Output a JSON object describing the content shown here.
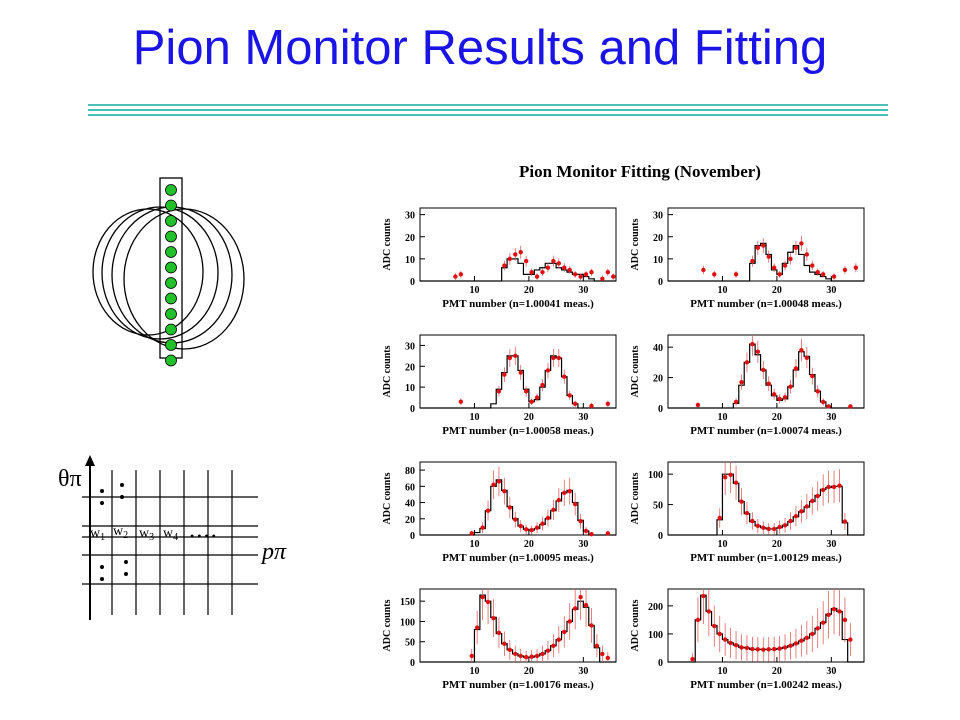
{
  "slide": {
    "title": "Pion Monitor Results and Fitting",
    "title_color": "#1a14e6",
    "rule_color": "#4dc0b6"
  },
  "ring_diagram": {
    "pmt_count": 12,
    "pmt_color": "#22c02a",
    "ring_count": 4
  },
  "grid_diagram": {
    "y_axis_label": "θπ",
    "x_axis_label": "pπ",
    "bins": [
      {
        "base": "w",
        "sub": "1"
      },
      {
        "base": "w",
        "sub": "2"
      },
      {
        "base": "w",
        "sub": "3"
      },
      {
        "base": "w",
        "sub": "4"
      }
    ],
    "ellipsis": "• • • •"
  },
  "chart_data": {
    "type": "histogram-grid",
    "title": "Pion Monitor Fitting (November)",
    "panels": [
      {
        "xlabel": "PMT number (n=1.00041 meas.)",
        "ylabel": "ADC counts",
        "yticks": [
          0,
          10,
          20,
          30
        ],
        "ylim": [
          0,
          33
        ],
        "xticks": [
          10,
          20,
          30
        ],
        "xlim": [
          0,
          36
        ],
        "hist": [
          0,
          0,
          0,
          0,
          0,
          0,
          0,
          0,
          0,
          0,
          0,
          0,
          0,
          0,
          0,
          6,
          10,
          10,
          8,
          3,
          3,
          5,
          6,
          8,
          8,
          6,
          5,
          4,
          3,
          3,
          2,
          1,
          0,
          0,
          0,
          0
        ],
        "points": [
          [
            6,
            2
          ],
          [
            7,
            3
          ],
          [
            15,
            7
          ],
          [
            16,
            10
          ],
          [
            17,
            12
          ],
          [
            18,
            13
          ],
          [
            19,
            9
          ],
          [
            20,
            4
          ],
          [
            21,
            2
          ],
          [
            22,
            4
          ],
          [
            23,
            6
          ],
          [
            24,
            9
          ],
          [
            25,
            8
          ],
          [
            26,
            6
          ],
          [
            27,
            5
          ],
          [
            28,
            3
          ],
          [
            29,
            2
          ],
          [
            30,
            3
          ],
          [
            31,
            4
          ],
          [
            33,
            1
          ],
          [
            34,
            4
          ],
          [
            35,
            2
          ]
        ]
      },
      {
        "xlabel": "PMT number (n=1.00048 meas.)",
        "ylabel": "ADC counts",
        "yticks": [
          0,
          10,
          20,
          30
        ],
        "ylim": [
          0,
          33
        ],
        "xticks": [
          10,
          20,
          30
        ],
        "xlim": [
          0,
          36
        ],
        "hist": [
          0,
          0,
          0,
          0,
          0,
          0,
          0,
          0,
          0,
          0,
          0,
          0,
          0,
          0,
          0,
          8,
          16,
          17,
          12,
          5,
          3,
          8,
          13,
          16,
          12,
          7,
          4,
          3,
          2,
          1,
          0,
          0,
          0,
          0,
          0,
          0
        ],
        "points": [
          [
            6,
            5
          ],
          [
            8,
            3
          ],
          [
            12,
            3
          ],
          [
            15,
            9
          ],
          [
            16,
            15
          ],
          [
            17,
            16
          ],
          [
            18,
            11
          ],
          [
            19,
            6
          ],
          [
            20,
            3
          ],
          [
            21,
            7
          ],
          [
            22,
            10
          ],
          [
            23,
            15
          ],
          [
            24,
            17
          ],
          [
            25,
            12
          ],
          [
            26,
            7
          ],
          [
            27,
            4
          ],
          [
            28,
            3
          ],
          [
            30,
            2
          ],
          [
            32,
            5
          ],
          [
            34,
            6
          ]
        ]
      },
      {
        "xlabel": "PMT number (n=1.00058 meas.)",
        "ylabel": "ADC counts",
        "yticks": [
          0,
          10,
          20,
          30
        ],
        "ylim": [
          0,
          35
        ],
        "xticks": [
          10,
          20,
          30
        ],
        "xlim": [
          0,
          36
        ],
        "hist": [
          0,
          0,
          0,
          0,
          0,
          0,
          0,
          0,
          0,
          0,
          0,
          0,
          0,
          2,
          9,
          17,
          25,
          25,
          18,
          9,
          3,
          4,
          10,
          18,
          25,
          24,
          15,
          6,
          2,
          0,
          0,
          0,
          0,
          0,
          0,
          0
        ],
        "points": [
          [
            7,
            3
          ],
          [
            14,
            8
          ],
          [
            15,
            16
          ],
          [
            16,
            24
          ],
          [
            17,
            25
          ],
          [
            18,
            17
          ],
          [
            19,
            8
          ],
          [
            20,
            3
          ],
          [
            21,
            5
          ],
          [
            22,
            11
          ],
          [
            23,
            18
          ],
          [
            24,
            24
          ],
          [
            25,
            24
          ],
          [
            26,
            15
          ],
          [
            27,
            6
          ],
          [
            28,
            2
          ],
          [
            31,
            1
          ],
          [
            34,
            2
          ]
        ]
      },
      {
        "xlabel": "PMT number (n=1.00074 meas.)",
        "ylabel": "ADC counts",
        "yticks": [
          0,
          20,
          40
        ],
        "ylim": [
          0,
          48
        ],
        "xticks": [
          10,
          20,
          30
        ],
        "xlim": [
          0,
          36
        ],
        "hist": [
          0,
          0,
          0,
          0,
          0,
          0,
          0,
          0,
          0,
          0,
          0,
          0,
          3,
          15,
          30,
          42,
          35,
          25,
          15,
          8,
          5,
          6,
          14,
          25,
          37,
          34,
          22,
          11,
          4,
          1,
          0,
          0,
          0,
          0,
          0,
          0
        ],
        "points": [
          [
            5,
            2
          ],
          [
            12,
            4
          ],
          [
            13,
            17
          ],
          [
            14,
            30
          ],
          [
            15,
            42
          ],
          [
            16,
            37
          ],
          [
            17,
            25
          ],
          [
            18,
            16
          ],
          [
            19,
            9
          ],
          [
            20,
            6
          ],
          [
            21,
            7
          ],
          [
            22,
            14
          ],
          [
            23,
            26
          ],
          [
            24,
            38
          ],
          [
            25,
            33
          ],
          [
            26,
            21
          ],
          [
            27,
            11
          ],
          [
            28,
            4
          ],
          [
            29,
            1
          ],
          [
            33,
            1
          ]
        ]
      },
      {
        "xlabel": "PMT number (n=1.00095 meas.)",
        "ylabel": "ADC counts",
        "yticks": [
          0,
          20,
          40,
          60,
          80
        ],
        "ylim": [
          0,
          90
        ],
        "xticks": [
          10,
          20,
          30
        ],
        "xlim": [
          0,
          36
        ],
        "hist": [
          0,
          0,
          0,
          0,
          0,
          0,
          0,
          0,
          0,
          0,
          3,
          8,
          30,
          60,
          68,
          55,
          35,
          20,
          11,
          7,
          6,
          8,
          13,
          20,
          30,
          42,
          52,
          55,
          40,
          18,
          5,
          0,
          0,
          0,
          0,
          0
        ],
        "points": [
          [
            9,
            2
          ],
          [
            11,
            9
          ],
          [
            12,
            30
          ],
          [
            13,
            62
          ],
          [
            14,
            66
          ],
          [
            15,
            54
          ],
          [
            16,
            34
          ],
          [
            17,
            19
          ],
          [
            18,
            11
          ],
          [
            19,
            7
          ],
          [
            20,
            6
          ],
          [
            21,
            9
          ],
          [
            22,
            14
          ],
          [
            23,
            21
          ],
          [
            24,
            31
          ],
          [
            25,
            43
          ],
          [
            26,
            52
          ],
          [
            27,
            54
          ],
          [
            28,
            38
          ],
          [
            29,
            17
          ],
          [
            30,
            5
          ],
          [
            31,
            1
          ],
          [
            34,
            2
          ]
        ]
      },
      {
        "xlabel": "PMT number (n=1.00129 meas.)",
        "ylabel": "ADC counts",
        "yticks": [
          0,
          50,
          100
        ],
        "ylim": [
          0,
          120
        ],
        "xticks": [
          10,
          20,
          30
        ],
        "xlim": [
          0,
          36
        ],
        "hist": [
          0,
          0,
          0,
          0,
          0,
          0,
          0,
          0,
          0,
          25,
          100,
          100,
          85,
          55,
          35,
          22,
          15,
          12,
          10,
          10,
          12,
          16,
          22,
          30,
          38,
          46,
          55,
          65,
          75,
          78,
          80,
          80,
          20,
          0,
          0,
          0
        ],
        "points": [
          [
            9,
            28
          ],
          [
            10,
            95
          ],
          [
            11,
            99
          ],
          [
            12,
            86
          ],
          [
            13,
            55
          ],
          [
            14,
            36
          ],
          [
            15,
            23
          ],
          [
            16,
            15
          ],
          [
            17,
            12
          ],
          [
            18,
            10
          ],
          [
            19,
            10
          ],
          [
            20,
            13
          ],
          [
            21,
            16
          ],
          [
            22,
            23
          ],
          [
            23,
            31
          ],
          [
            24,
            39
          ],
          [
            25,
            47
          ],
          [
            26,
            56
          ],
          [
            27,
            64
          ],
          [
            28,
            74
          ],
          [
            29,
            79
          ],
          [
            30,
            79
          ],
          [
            31,
            81
          ],
          [
            32,
            22
          ]
        ]
      },
      {
        "xlabel": "PMT number (n=1.00176 meas.)",
        "ylabel": "ADC counts",
        "yticks": [
          0,
          50,
          100,
          150
        ],
        "ylim": [
          0,
          180
        ],
        "xticks": [
          10,
          20,
          30
        ],
        "xlim": [
          0,
          36
        ],
        "hist": [
          0,
          0,
          0,
          0,
          0,
          0,
          0,
          0,
          0,
          0,
          80,
          165,
          150,
          110,
          70,
          45,
          30,
          20,
          15,
          12,
          12,
          15,
          20,
          28,
          40,
          55,
          75,
          100,
          130,
          150,
          135,
          90,
          35,
          0,
          0,
          0
        ],
        "points": [
          [
            9,
            15
          ],
          [
            10,
            85
          ],
          [
            11,
            160
          ],
          [
            12,
            148
          ],
          [
            13,
            108
          ],
          [
            14,
            72
          ],
          [
            15,
            45
          ],
          [
            16,
            30
          ],
          [
            17,
            20
          ],
          [
            18,
            15
          ],
          [
            19,
            12
          ],
          [
            20,
            13
          ],
          [
            21,
            15
          ],
          [
            22,
            20
          ],
          [
            23,
            28
          ],
          [
            24,
            40
          ],
          [
            25,
            55
          ],
          [
            26,
            74
          ],
          [
            27,
            100
          ],
          [
            28,
            132
          ],
          [
            29,
            160
          ],
          [
            30,
            140
          ],
          [
            31,
            90
          ],
          [
            32,
            40
          ],
          [
            33,
            20
          ],
          [
            34,
            10
          ]
        ]
      },
      {
        "xlabel": "PMT number (n=1.00242 meas.)",
        "ylabel": "ADC counts",
        "yticks": [
          0,
          100,
          200
        ],
        "ylim": [
          0,
          260
        ],
        "xticks": [
          10,
          20,
          30
        ],
        "xlim": [
          0,
          36
        ],
        "hist": [
          0,
          0,
          0,
          0,
          0,
          150,
          238,
          180,
          130,
          100,
          80,
          68,
          60,
          52,
          50,
          45,
          45,
          45,
          45,
          45,
          48,
          52,
          58,
          65,
          75,
          85,
          100,
          120,
          140,
          170,
          190,
          180,
          80,
          0,
          0,
          0
        ],
        "points": [
          [
            4,
            10
          ],
          [
            5,
            150
          ],
          [
            6,
            235
          ],
          [
            7,
            180
          ],
          [
            8,
            128
          ],
          [
            9,
            100
          ],
          [
            10,
            80
          ],
          [
            11,
            68
          ],
          [
            12,
            60
          ],
          [
            13,
            52
          ],
          [
            14,
            50
          ],
          [
            15,
            46
          ],
          [
            16,
            45
          ],
          [
            17,
            44
          ],
          [
            18,
            45
          ],
          [
            19,
            46
          ],
          [
            20,
            48
          ],
          [
            21,
            52
          ],
          [
            22,
            58
          ],
          [
            23,
            66
          ],
          [
            24,
            76
          ],
          [
            25,
            86
          ],
          [
            26,
            100
          ],
          [
            27,
            120
          ],
          [
            28,
            140
          ],
          [
            29,
            168
          ],
          [
            30,
            188
          ],
          [
            31,
            180
          ],
          [
            32,
            150
          ],
          [
            33,
            80
          ]
        ]
      }
    ],
    "colors": {
      "histogram": "#000000",
      "points": "#e01010",
      "error_bars": "#e06060"
    }
  }
}
